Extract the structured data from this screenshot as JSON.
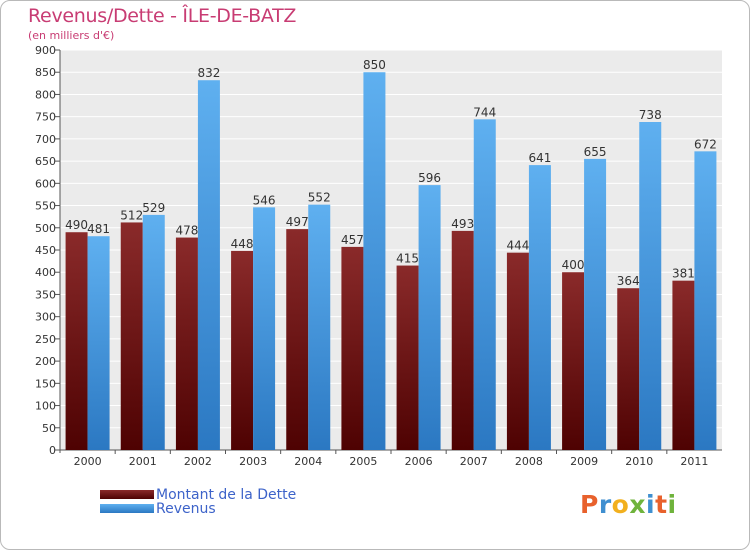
{
  "title": "Revenus/Dette - ÎLE-DE-BATZ",
  "subtitle": "(en milliers d'€)",
  "brand": {
    "letters": [
      "P",
      "r",
      "o",
      "x",
      "i",
      "t",
      "i"
    ],
    "colors": [
      "#e8612c",
      "#3f8fd0",
      "#f2b01e",
      "#6fb33c",
      "#3f8fd0",
      "#e8612c",
      "#6fb33c"
    ]
  },
  "colors": {
    "dette": "#7d1a1a",
    "dette_dark": "#5a0707",
    "revenus": "#58a9ea",
    "revenus_dark": "#2a77c3",
    "plot_bg": "#ebebeb",
    "grid": "#ffffff",
    "text": "#333333"
  },
  "chart_data": {
    "type": "bar",
    "categories": [
      "2000",
      "2001",
      "2002",
      "2003",
      "2004",
      "2005",
      "2006",
      "2007",
      "2008",
      "2009",
      "2010",
      "2011"
    ],
    "series": [
      {
        "name": "Montant de la Dette",
        "values": [
          490,
          512,
          478,
          448,
          497,
          457,
          415,
          493,
          444,
          400,
          364,
          381
        ]
      },
      {
        "name": "Revenus",
        "values": [
          481,
          529,
          832,
          546,
          552,
          850,
          596,
          744,
          641,
          655,
          738,
          672
        ]
      }
    ],
    "yticks": [
      0,
      50,
      100,
      150,
      200,
      250,
      300,
      350,
      400,
      450,
      500,
      550,
      600,
      650,
      700,
      750,
      800,
      850,
      900
    ],
    "ylim": [
      0,
      900
    ],
    "grid": true,
    "legend_position": "bottom-left"
  }
}
